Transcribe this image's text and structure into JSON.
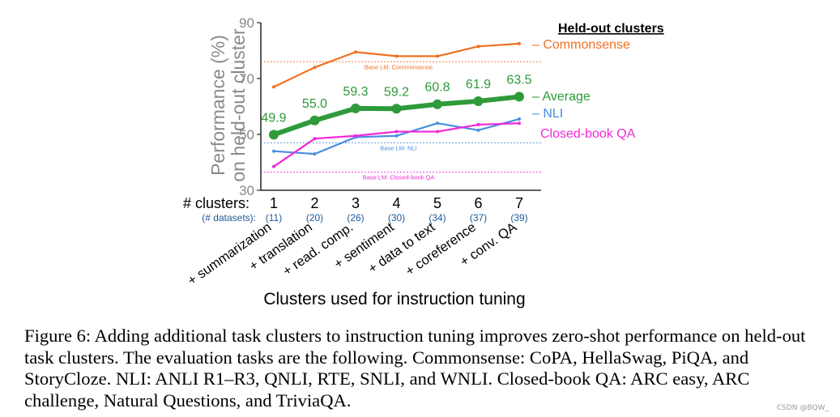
{
  "chart_data": {
    "type": "line",
    "ylabel": "Performance (%) on held-out cluster",
    "xlabel": "Clusters used for instruction tuning",
    "ylim": [
      30,
      90
    ],
    "yticks": [
      30,
      50,
      70,
      90
    ],
    "x": [
      1,
      2,
      3,
      4,
      5,
      6,
      7
    ],
    "x_axis_title": "# clusters:",
    "datasets_label": "(# datasets):",
    "datasets": [
      "(11)",
      "(20)",
      "(26)",
      "(30)",
      "(34)",
      "(37)",
      "(39)"
    ],
    "cluster_names": [
      "+ summarization",
      "+ translation",
      "+ read. comp.",
      "+ sentiment",
      "+ data to text",
      "+ coreference",
      "+ conv. QA"
    ],
    "legend_title": "Held-out clusters",
    "grid": false,
    "series": [
      {
        "name": "Commonsense",
        "color": "#f07020",
        "values": [
          67,
          74,
          79.5,
          78,
          78,
          81.5,
          82.5
        ],
        "baseline": 76,
        "baseline_label": "Base LM: Commonsense"
      },
      {
        "name": "Average",
        "color": "#2e9a3a",
        "values": [
          49.9,
          55.0,
          59.3,
          59.2,
          60.8,
          61.9,
          63.5
        ],
        "data_labels": [
          "49.9",
          "55.0",
          "59.3",
          "59.2",
          "60.8",
          "61.9",
          "63.5"
        ]
      },
      {
        "name": "NLI",
        "color": "#4a8ee0",
        "values": [
          44,
          43,
          49,
          49.5,
          54,
          51.5,
          55.5
        ],
        "baseline": 47,
        "baseline_label": "Base LM: NLI"
      },
      {
        "name": "Closed-book QA",
        "color": "#f028d8",
        "values": [
          38.5,
          48.5,
          49.5,
          51,
          51,
          53.5,
          54
        ],
        "baseline": 36.5,
        "baseline_label": "Base LM: Closed-book QA"
      }
    ]
  },
  "caption": "Figure 6: Adding additional task clusters to instruction tuning improves zero-shot performance on held-out task clusters. The evaluation tasks are the following. Commonsense: CoPA, HellaSwag, PiQA, and StoryCloze. NLI: ANLI R1–R3, QNLI, RTE, SNLI, and WNLI. Closed-book QA: ARC easy, ARC challenge, Natural Questions, and TriviaQA.",
  "watermark": "CSDN @BQW_"
}
